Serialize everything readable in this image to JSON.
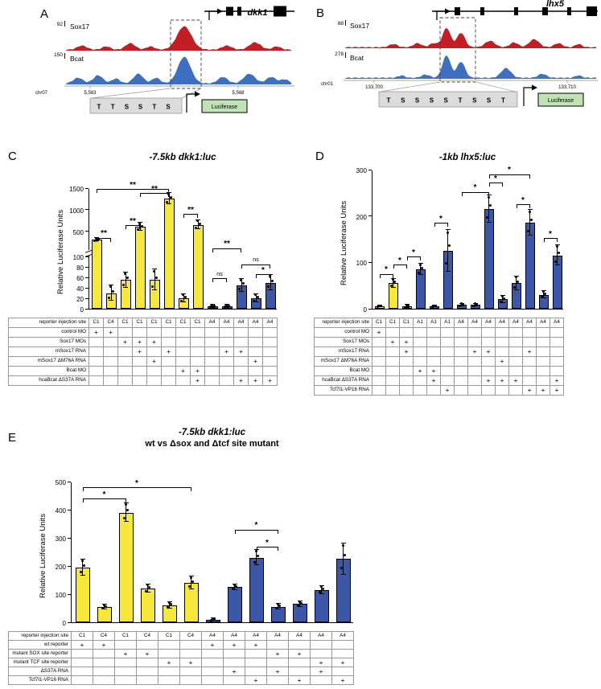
{
  "site_colors": {
    "T": "#d93025",
    "S": "#2e62c9"
  },
  "bar_colors": {
    "C": "#f6e73b",
    "A": "#3d57a8"
  },
  "browser_panels": {
    "A": {
      "letter": "A",
      "gene": "dkk1",
      "chrom": "chr07",
      "coord_left": "5,563",
      "coord_right": "5,568",
      "luciferase": "Luciferase",
      "construct_sites": [
        "T",
        "T",
        "S",
        "S",
        "T",
        "S"
      ],
      "tracks": [
        {
          "name": "Sox17",
          "scale": "92",
          "color": "#c41e25",
          "peaks": [
            [
              20,
              5,
              6
            ],
            [
              50,
              4,
              5
            ],
            [
              80,
              8,
              6
            ],
            [
              105,
              4,
              5
            ],
            [
              147,
              29,
              9
            ],
            [
              200,
              5,
              6
            ],
            [
              235,
              9,
              7
            ],
            [
              262,
              4,
              5
            ]
          ]
        },
        {
          "name": "Bcat",
          "scale": "150",
          "color": "#3f6fc0",
          "peaks": [
            [
              15,
              7,
              6
            ],
            [
              40,
              10,
              6
            ],
            [
              62,
              6,
              5
            ],
            [
              90,
              12,
              6
            ],
            [
              112,
              7,
              5
            ],
            [
              147,
              33,
              8
            ],
            [
              195,
              8,
              6
            ],
            [
              228,
              12,
              7
            ],
            [
              255,
              8,
              6
            ],
            [
              272,
              5,
              5
            ]
          ]
        }
      ]
    },
    "B": {
      "letter": "B",
      "gene": "lhx5",
      "chrom": "chr01",
      "coord_left": "133,700",
      "coord_right": "133,710",
      "luciferase": "Luciferase",
      "construct_sites": [
        "T",
        "S",
        "S",
        "S",
        "S",
        "T",
        "S",
        "S",
        "T"
      ],
      "tracks": [
        {
          "name": "Sox17",
          "scale": "88",
          "color": "#c41e25",
          "peaks": [
            [
              60,
              4,
              5
            ],
            [
              90,
              5,
              5
            ],
            [
              110,
              5,
              5
            ],
            [
              126,
              24,
              5
            ],
            [
              144,
              18,
              5
            ],
            [
              180,
              8,
              6
            ],
            [
              210,
              6,
              5
            ],
            [
              235,
              10,
              6
            ],
            [
              265,
              5,
              5
            ],
            [
              290,
              4,
              4
            ]
          ]
        },
        {
          "name": "Bcat",
          "scale": "278",
          "color": "#3f6fc0",
          "peaks": [
            [
              70,
              3,
              4
            ],
            [
              100,
              4,
              5
            ],
            [
              126,
              28,
              5
            ],
            [
              144,
              20,
              5
            ],
            [
              200,
              12,
              6
            ],
            [
              245,
              5,
              5
            ],
            [
              290,
              3,
              4
            ]
          ]
        }
      ]
    }
  },
  "chart_data": [
    {
      "id": "C",
      "letter": "C",
      "type": "bar",
      "title": "-7.5kb dkk1:luc",
      "ylabel": "Relative Luciferase Units",
      "axis": {
        "break": true,
        "lower_ticks": [
          0,
          20,
          40,
          60,
          80,
          100
        ],
        "upper_ticks": [
          500,
          1000,
          1500
        ],
        "lower_max": 100,
        "upper_max": 1500
      },
      "sites": [
        "C1",
        "C4",
        "C1",
        "C1",
        "C1",
        "C1",
        "C1",
        "C1",
        "A4",
        "A4",
        "A4",
        "A4",
        "A4"
      ],
      "values": [
        300,
        30,
        55,
        600,
        55,
        1250,
        20,
        650,
        5,
        5,
        45,
        20,
        50
      ],
      "errors": [
        40,
        15,
        15,
        90,
        20,
        130,
        8,
        110,
        3,
        3,
        12,
        8,
        14
      ],
      "rows": [
        {
          "label": "reporter injection site",
          "type": "sites"
        },
        {
          "label": "control MO",
          "plus": [
            1,
            2
          ]
        },
        {
          "label": "Sox17 MOs",
          "plus": [
            3,
            4,
            5
          ]
        },
        {
          "label": "mSox17 RNA",
          "plus": [
            4,
            6,
            10,
            11
          ]
        },
        {
          "label": "mSox17 ΔM76A RNA",
          "plus": [
            5,
            12
          ]
        },
        {
          "label": "Bcat MO",
          "pl": "",
          "plus": [
            7,
            8
          ]
        },
        {
          "label": "hcaBcat ΔS37A RNA",
          "plus": [
            8,
            11,
            12,
            13
          ]
        }
      ],
      "sig": [
        {
          "a": 1,
          "b": 2,
          "v": 350,
          "label": "**"
        },
        {
          "a": 3,
          "b": 4,
          "v": 640,
          "label": "**"
        },
        {
          "a": 7,
          "b": 8,
          "v": 900,
          "label": "**"
        },
        {
          "a": 4,
          "b": 6,
          "v": 1380,
          "label": "**"
        },
        {
          "a": 1,
          "b": 6,
          "v": 1480,
          "label": "**"
        },
        {
          "a": 9,
          "b": 10,
          "v": 58,
          "label": "ns"
        },
        {
          "a": 9,
          "b": 11,
          "v": 105,
          "label": "**"
        },
        {
          "a": 11,
          "b": 13,
          "v": 85,
          "label": "ns"
        },
        {
          "a": 12,
          "b": 13,
          "v": 66,
          "label": "*"
        }
      ]
    },
    {
      "id": "D",
      "letter": "D",
      "type": "bar",
      "title": "-1kb lhx5:luc",
      "ylabel": "Relative Luciferase Units",
      "axis": {
        "break": false,
        "ticks": [
          0,
          100,
          200,
          300
        ],
        "max": 300
      },
      "sites": [
        "C1",
        "C1",
        "C1",
        "A1",
        "A1",
        "A1",
        "A4",
        "A4",
        "A4",
        "A4",
        "A4",
        "A4",
        "A4",
        "A4"
      ],
      "values": [
        5,
        55,
        5,
        85,
        5,
        125,
        8,
        8,
        215,
        20,
        55,
        185,
        30,
        115
      ],
      "errors": [
        2,
        10,
        3,
        12,
        2,
        45,
        3,
        3,
        30,
        8,
        15,
        28,
        8,
        22
      ],
      "rows": [
        {
          "label": "reporter injection site",
          "type": "sites"
        },
        {
          "label": "control MO",
          "plus": [
            1
          ]
        },
        {
          "label": "Sox17 MOs",
          "plus": [
            2,
            3
          ]
        },
        {
          "label": "mSox17 RNA",
          "plus": [
            3,
            8,
            9,
            12
          ]
        },
        {
          "label": "mSox17 ΔM76A RNA",
          "plus": [
            10
          ]
        },
        {
          "label": "Bcat MO",
          "plus": [
            4,
            5
          ]
        },
        {
          "label": "hcaBcat ΔS37A RNA",
          "plus": [
            5,
            9,
            10,
            11,
            14
          ]
        },
        {
          "label": "Tcf7l1-VP16 RNA",
          "plus": [
            6,
            12,
            13,
            14
          ]
        }
      ],
      "sig": [
        {
          "a": 1,
          "b": 2,
          "v": 75,
          "label": "*"
        },
        {
          "a": 2,
          "b": 3,
          "v": 95,
          "label": "*"
        },
        {
          "a": 3,
          "b": 4,
          "v": 112,
          "label": "*"
        },
        {
          "a": 5,
          "b": 6,
          "v": 185,
          "label": "*"
        },
        {
          "a": 7,
          "b": 9,
          "v": 252,
          "label": "*"
        },
        {
          "a": 9,
          "b": 10,
          "v": 272,
          "label": "*"
        },
        {
          "a": 9,
          "b": 12,
          "v": 290,
          "label": "*"
        },
        {
          "a": 11,
          "b": 12,
          "v": 225,
          "label": "*"
        },
        {
          "a": 13,
          "b": 14,
          "v": 152,
          "label": "*"
        }
      ]
    },
    {
      "id": "E",
      "letter": "E",
      "type": "bar",
      "title": "-7.5kb dkk1:luc",
      "subtitle": "wt vs Δsox and Δtcf site mutant",
      "ylabel": "Relative Luciferase Units",
      "axis": {
        "break": false,
        "ticks": [
          0,
          100,
          200,
          300,
          400,
          500
        ],
        "max": 500
      },
      "sites": [
        "C1",
        "C4",
        "C1",
        "C4",
        "C1",
        "C4",
        "A4",
        "A4",
        "A4",
        "A4",
        "A4",
        "A4",
        "A4"
      ],
      "values": [
        195,
        55,
        390,
        120,
        60,
        140,
        10,
        125,
        230,
        55,
        65,
        115,
        225
      ],
      "errors": [
        28,
        8,
        32,
        15,
        12,
        22,
        5,
        10,
        28,
        10,
        10,
        15,
        55
      ],
      "rows": [
        {
          "label": "reporter injection site",
          "type": "sites"
        },
        {
          "label": "wt reporter",
          "plus": [
            1,
            2,
            7,
            8,
            9
          ]
        },
        {
          "label": "mutant SOX site reporter",
          "plus": [
            3,
            4,
            10,
            11
          ]
        },
        {
          "label": "mutant TCF site reporter",
          "plus": [
            5,
            6,
            12,
            13
          ]
        },
        {
          "label": "ΔS37A RNA",
          "plus": [
            8,
            10,
            12
          ]
        },
        {
          "label": "Tcf7l1-VP16 RNA",
          "plus": [
            9,
            11,
            13
          ]
        }
      ],
      "sig": [
        {
          "a": 1,
          "b": 3,
          "v": 440,
          "label": "*"
        },
        {
          "a": 1,
          "b": 6,
          "v": 480,
          "label": "*"
        },
        {
          "a": 8,
          "b": 10,
          "v": 330,
          "label": "*"
        },
        {
          "a": 9,
          "b": 10,
          "v": 268,
          "label": "*"
        }
      ]
    }
  ]
}
